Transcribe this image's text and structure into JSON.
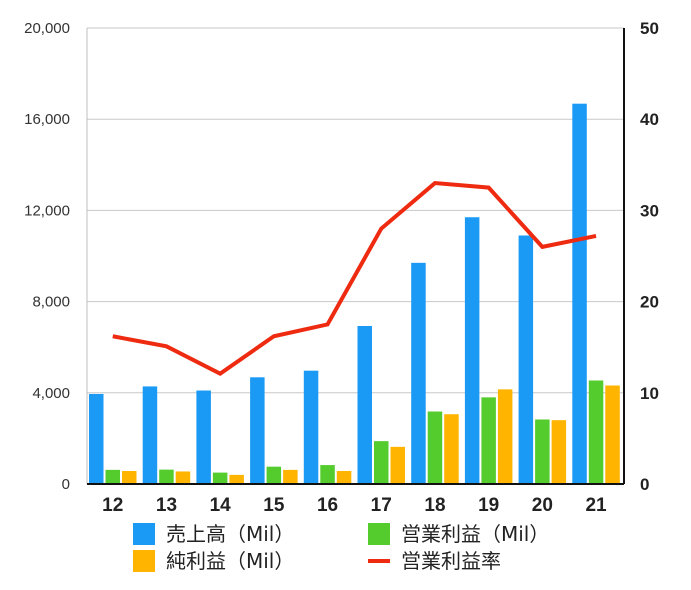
{
  "chart_data": {
    "type": "bar",
    "categories": [
      "12",
      "13",
      "14",
      "15",
      "16",
      "17",
      "18",
      "19",
      "20",
      "21"
    ],
    "series": [
      {
        "name": "売上高（Mil）",
        "kind": "bar",
        "axis": "left",
        "color": "#1a9af5",
        "values": [
          3950,
          4280,
          4100,
          4680,
          4970,
          6930,
          9700,
          11700,
          10900,
          16680
        ]
      },
      {
        "name": "営業利益（Mil）",
        "kind": "bar",
        "axis": "left",
        "color": "#55cc2e",
        "values": [
          620,
          630,
          500,
          760,
          830,
          1880,
          3180,
          3800,
          2830,
          4540
        ]
      },
      {
        "name": "純利益（Mil）",
        "kind": "bar",
        "axis": "left",
        "color": "#ffb400",
        "values": [
          570,
          550,
          400,
          620,
          570,
          1630,
          3060,
          4150,
          2800,
          4320
        ]
      },
      {
        "name": "営業利益率",
        "kind": "line",
        "axis": "right",
        "color": "#ee2b10",
        "values": [
          16.2,
          15.1,
          12.1,
          16.2,
          17.5,
          28.0,
          33.0,
          32.5,
          26.0,
          27.2
        ]
      }
    ],
    "y_left": {
      "ylim": [
        0,
        20000
      ],
      "ticks": [
        "0",
        "4,000",
        "8,000",
        "12,000",
        "16,000",
        "20,000"
      ]
    },
    "y_right": {
      "ylim": [
        0,
        50
      ],
      "ticks": [
        "0",
        "10",
        "20",
        "30",
        "40",
        "50"
      ]
    },
    "grid": true,
    "legend_position": "bottom"
  }
}
